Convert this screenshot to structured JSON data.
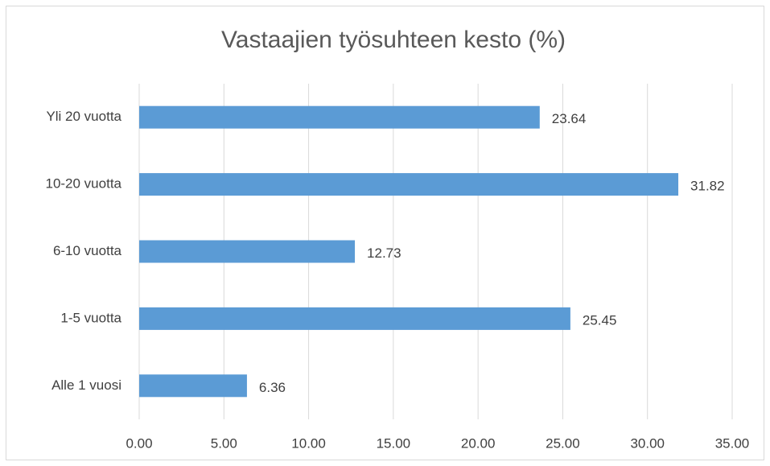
{
  "chart_data": {
    "type": "bar",
    "orientation": "horizontal",
    "title": "Vastaajien työsuhteen kesto (%)",
    "categories": [
      "Yli 20 vuotta",
      "10-20 vuotta",
      "6-10 vuotta",
      "1-5 vuotta",
      "Alle 1 vuosi"
    ],
    "values": [
      23.64,
      31.82,
      12.73,
      25.45,
      6.36
    ],
    "color": "#5b9bd5",
    "xlim": [
      0,
      35
    ],
    "xticks": [
      {
        "value": 0,
        "label": "0.00"
      },
      {
        "value": 5,
        "label": "5.00"
      },
      {
        "value": 10,
        "label": "10.00"
      },
      {
        "value": 15,
        "label": "15.00"
      },
      {
        "value": 20,
        "label": "20.00"
      },
      {
        "value": 25,
        "label": "25.00"
      },
      {
        "value": 30,
        "label": "30.00"
      },
      {
        "value": 35,
        "label": "35.00"
      }
    ],
    "grid": true
  }
}
